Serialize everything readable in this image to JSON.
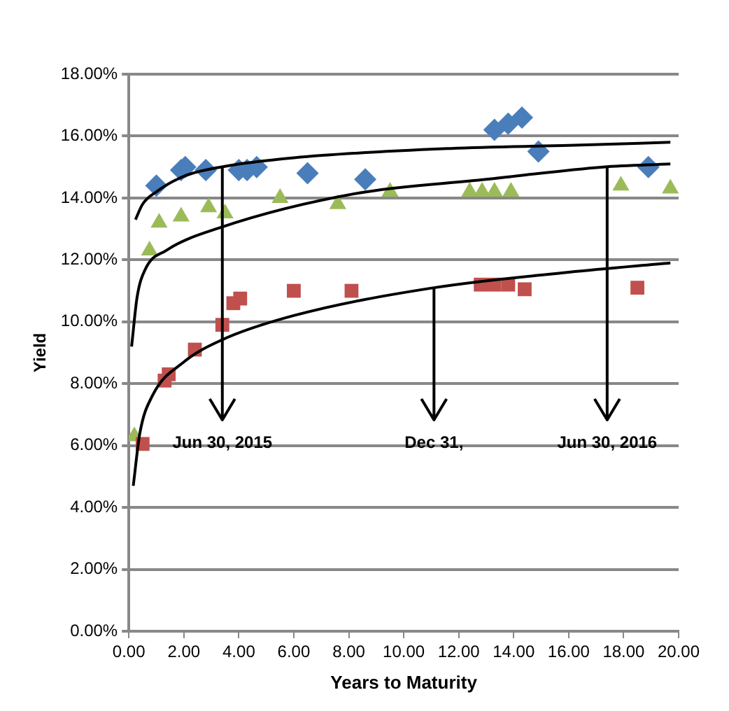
{
  "chart_data": {
    "type": "scatter",
    "xlabel": "Years to Maturity",
    "ylabel": "Yield",
    "grid": "y",
    "legend": false,
    "xlim": [
      0,
      20
    ],
    "xticks": [
      {
        "value": 0,
        "label": "0.00"
      },
      {
        "value": 2,
        "label": "2.00"
      },
      {
        "value": 4,
        "label": "4.00"
      },
      {
        "value": 6,
        "label": "6.00"
      },
      {
        "value": 8,
        "label": "8.00"
      },
      {
        "value": 10,
        "label": "10.00"
      },
      {
        "value": 12,
        "label": "12.00"
      },
      {
        "value": 14,
        "label": "14.00"
      },
      {
        "value": 16,
        "label": "16.00"
      },
      {
        "value": 18,
        "label": "18.00"
      },
      {
        "value": 20,
        "label": "20.00"
      }
    ],
    "ylim": [
      0,
      18
    ],
    "yticks": [
      {
        "value": 0,
        "label": "0.00%"
      },
      {
        "value": 2,
        "label": "2.00%"
      },
      {
        "value": 4,
        "label": "4.00%"
      },
      {
        "value": 6,
        "label": "6.00%"
      },
      {
        "value": 8,
        "label": "8.00%"
      },
      {
        "value": 10,
        "label": "10.00%"
      },
      {
        "value": 12,
        "label": "12.00%"
      },
      {
        "value": 14,
        "label": "14.00%"
      },
      {
        "value": 16,
        "label": "16.00%"
      },
      {
        "value": 18,
        "label": "18.00%"
      }
    ],
    "series": [
      {
        "type": "scatter",
        "marker": "diamond",
        "color": "#4a7ebb",
        "x": [
          1.0,
          1.9,
          2.05,
          2.8,
          4.0,
          4.3,
          4.65,
          6.5,
          8.6,
          13.3,
          13.8,
          14.3,
          14.9,
          18.9
        ],
        "values": [
          14.4,
          14.9,
          15.0,
          14.9,
          14.9,
          14.9,
          15.0,
          14.8,
          14.6,
          16.2,
          16.4,
          16.6,
          15.5,
          15.0
        ]
      },
      {
        "type": "scatter",
        "marker": "square",
        "color": "#c0504d",
        "x": [
          0.5,
          1.3,
          1.45,
          2.4,
          3.4,
          3.8,
          4.05,
          6.0,
          8.1,
          12.8,
          13.3,
          13.8,
          14.4,
          18.5
        ],
        "values": [
          6.05,
          8.1,
          8.3,
          9.1,
          9.9,
          10.6,
          10.75,
          11.0,
          11.0,
          11.2,
          11.2,
          11.2,
          11.05,
          11.1
        ]
      },
      {
        "type": "scatter",
        "marker": "triangle",
        "color": "#9bbb59",
        "x": [
          0.2,
          0.75,
          1.1,
          1.9,
          2.9,
          3.5,
          5.5,
          7.6,
          9.5,
          12.4,
          12.85,
          13.3,
          13.9,
          17.9,
          19.7
        ],
        "values": [
          6.3,
          12.3,
          13.2,
          13.4,
          13.7,
          13.5,
          14.0,
          13.8,
          14.2,
          14.2,
          14.2,
          14.2,
          14.2,
          14.4,
          14.3
        ]
      },
      {
        "type": "line",
        "marker": "none",
        "color": "#000000",
        "x": [
          0.24,
          0.5,
          1,
          2,
          3.35,
          6,
          11.7,
          16,
          19.7
        ],
        "values": [
          13.3,
          13.8,
          14.2,
          14.7,
          15.0,
          15.3,
          15.6,
          15.7,
          15.8
        ]
      },
      {
        "type": "line",
        "marker": "none",
        "color": "#000000",
        "x": [
          0.1,
          0.3,
          0.6,
          1.35,
          3.35,
          8.3,
          13,
          17.25,
          19.7
        ],
        "values": [
          9.2,
          10.8,
          11.7,
          12.3,
          13.05,
          14.15,
          14.6,
          15.0,
          15.1
        ]
      },
      {
        "type": "line",
        "marker": "none",
        "color": "#000000",
        "x": [
          0.16,
          0.4,
          0.85,
          2,
          3.35,
          6,
          11.1,
          16,
          19.7
        ],
        "values": [
          4.7,
          6.4,
          7.6,
          8.7,
          9.4,
          10.2,
          11.1,
          11.6,
          11.9
        ]
      }
    ],
    "annotations": [
      {
        "text": "Jun 30, 2015",
        "x": 3.4,
        "y": 15.0
      },
      {
        "text": "Dec 31,",
        "x": 11.1,
        "y": 11.1
      },
      {
        "text": "Jun 30, 2016",
        "x": 17.4,
        "y": 15.0
      }
    ]
  }
}
